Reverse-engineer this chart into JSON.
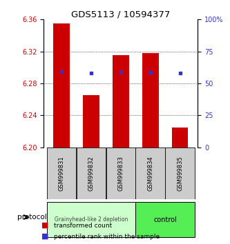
{
  "title": "GDS5113 / 10594377",
  "samples": [
    "GSM999831",
    "GSM999832",
    "GSM999833",
    "GSM999834",
    "GSM999835"
  ],
  "bar_bottoms": [
    6.2,
    6.2,
    6.2,
    6.2,
    6.2
  ],
  "bar_tops": [
    6.355,
    6.265,
    6.315,
    6.318,
    6.225
  ],
  "blue_values": [
    6.295,
    6.293,
    6.294,
    6.294,
    6.293
  ],
  "ylim": [
    6.2,
    6.36
  ],
  "yticks_left": [
    6.2,
    6.24,
    6.28,
    6.32,
    6.36
  ],
  "yticks_right": [
    0,
    25,
    50,
    75,
    100
  ],
  "ytick_labels_right": [
    "0",
    "25",
    "50",
    "75",
    "100%"
  ],
  "bar_color": "#cc0000",
  "blue_color": "#3333cc",
  "group_colors": [
    "#ccffcc",
    "#55ee55"
  ],
  "group_labels": [
    "Grainyhead-like 2 depletion",
    "control"
  ],
  "legend_labels": [
    "transformed count",
    "percentile rank within the sample"
  ],
  "protocol_label": "protocol",
  "left_tick_color": "#cc0000",
  "right_tick_color": "#3333cc",
  "background_color": "#ffffff",
  "sample_box_color": "#cccccc"
}
